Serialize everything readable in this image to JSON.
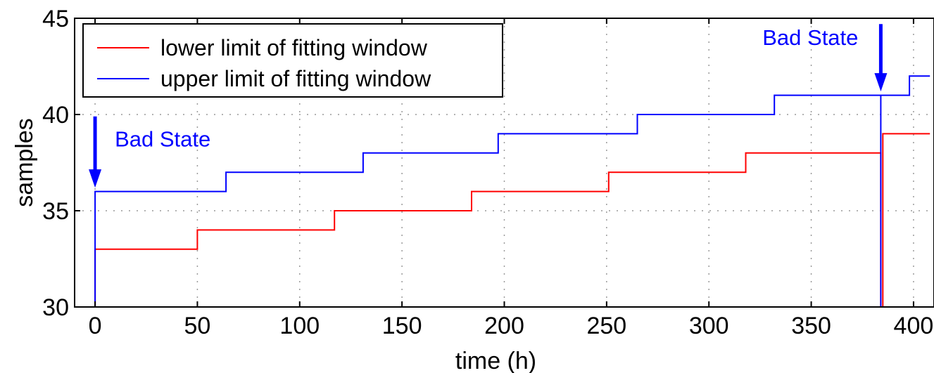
{
  "chart_data": {
    "type": "line",
    "title": "",
    "xlabel": "time (h)",
    "ylabel": "samples",
    "xlim": [
      -10,
      410
    ],
    "ylim": [
      30,
      45
    ],
    "xticks": [
      0,
      50,
      100,
      150,
      200,
      250,
      300,
      350,
      400
    ],
    "yticks": [
      30,
      35,
      40,
      45
    ],
    "grid": true,
    "legend_position": "top-left",
    "series": [
      {
        "name": "lower limit of fitting window",
        "color": "#ff0000",
        "step": true,
        "x": [
          0,
          0,
          50,
          50,
          117,
          117,
          184,
          184,
          251,
          251,
          318,
          318,
          384,
          384,
          385,
          385,
          408
        ],
        "y": [
          30,
          33,
          33,
          34,
          34,
          35,
          35,
          36,
          36,
          37,
          37,
          38,
          38,
          30,
          30,
          39,
          39
        ]
      },
      {
        "name": "upper limit of fitting window",
        "color": "#0000ff",
        "step": true,
        "x": [
          0,
          0,
          64,
          64,
          131,
          131,
          197,
          197,
          265,
          265,
          332,
          332,
          384,
          384,
          384,
          384,
          398,
          398,
          408
        ],
        "y": [
          30,
          36,
          36,
          37,
          37,
          38,
          38,
          39,
          39,
          40,
          40,
          41,
          41,
          30,
          41,
          41,
          41,
          42,
          42
        ]
      }
    ],
    "annotations": [
      {
        "text": "Bad State",
        "x": 0,
        "y": 39.9,
        "arrow_to_y": 36.2,
        "color": "#0000ff"
      },
      {
        "text": "Bad State",
        "x": 384,
        "y": 44.7,
        "arrow_to_y": 41.2,
        "color": "#0000ff"
      }
    ]
  }
}
